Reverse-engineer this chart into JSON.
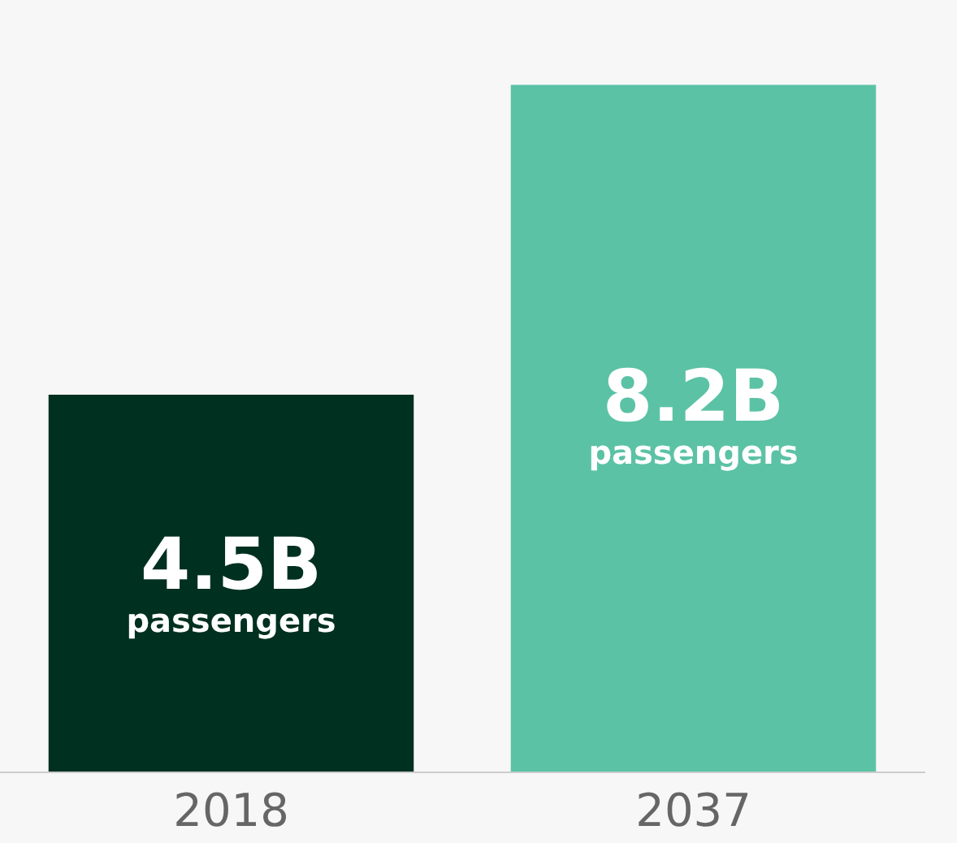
{
  "chart_data": {
    "type": "bar",
    "categories": [
      "2018",
      "2037"
    ],
    "values": [
      4.5,
      8.2
    ],
    "colors": [
      "#00301f",
      "#5bc2a5"
    ],
    "value_labels": [
      "4.5B\npassengers",
      "8.2B\npassengers"
    ],
    "grid": false
  }
}
